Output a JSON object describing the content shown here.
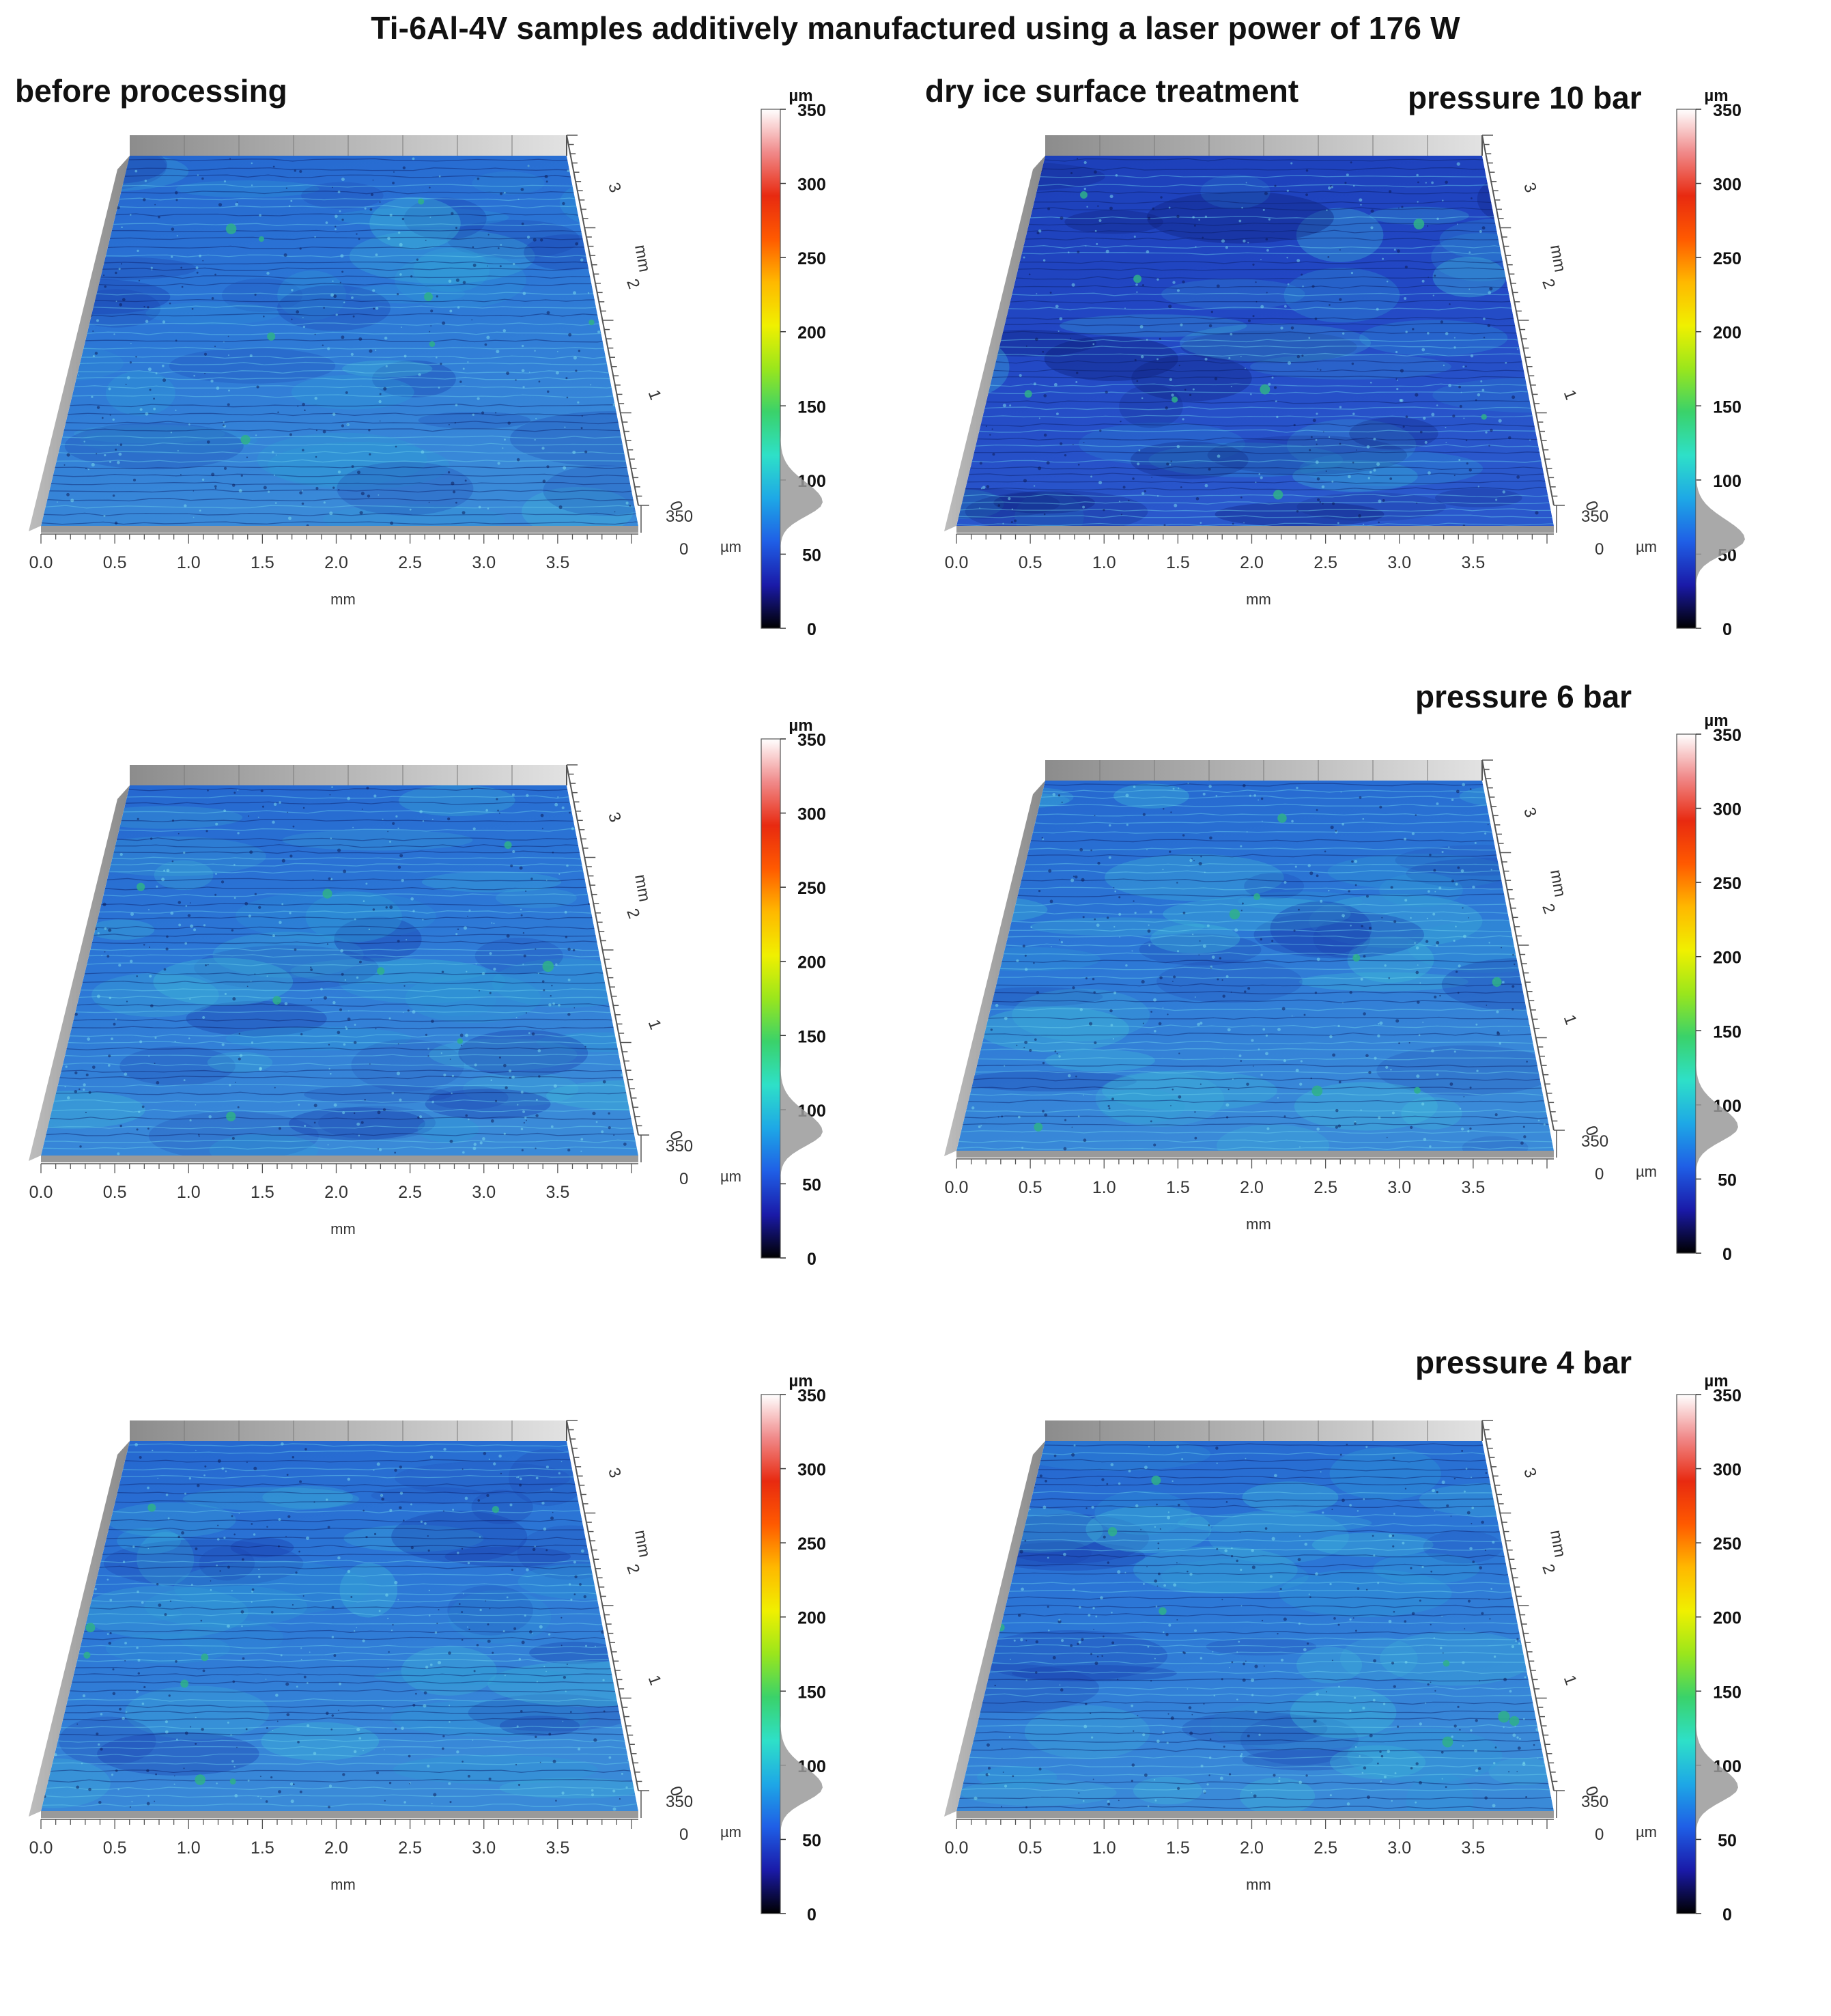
{
  "figure": {
    "title": "Ti-6Al-4V samples additively manufactured using a laser power of 176 W",
    "left_column_label": "before processing",
    "right_column_label": "dry ice surface treatment"
  },
  "axes": {
    "x_unit": "mm",
    "y_unit": "mm",
    "z_unit": "µm",
    "x_ticks": [
      "0.0",
      "0.5",
      "1.0",
      "1.5",
      "2.0",
      "2.5",
      "3.0",
      "3.5"
    ],
    "y_ticks": [
      "0",
      "1",
      "2",
      "3"
    ],
    "z_ticks": [
      "350",
      "0"
    ],
    "colorbar_unit": "µm",
    "colorbar_ticks": [
      "350",
      "300",
      "250",
      "200",
      "150",
      "100",
      "50",
      "0"
    ],
    "colorbar_range": [
      0,
      350
    ]
  },
  "colors": {
    "scale": [
      "#000000",
      "#1a1aa8",
      "#1f5fe6",
      "#1ea8e6",
      "#2ee0c8",
      "#3ad26a",
      "#9ae61c",
      "#f0f000",
      "#ffb800",
      "#ff5a00",
      "#e82a10",
      "#f08a8a",
      "#ffffff"
    ],
    "surface_base": "#2a62c8"
  },
  "panels": [
    {
      "id": "before-1",
      "column": "before",
      "label": ""
    },
    {
      "id": "after-10bar",
      "column": "after",
      "label": "pressure  10 bar"
    },
    {
      "id": "before-2",
      "column": "before",
      "label": ""
    },
    {
      "id": "after-6bar",
      "column": "after",
      "label": "pressure 6 bar"
    },
    {
      "id": "before-3",
      "column": "before",
      "label": ""
    },
    {
      "id": "after-4bar",
      "column": "after",
      "label": "pressure  4 bar"
    }
  ]
}
